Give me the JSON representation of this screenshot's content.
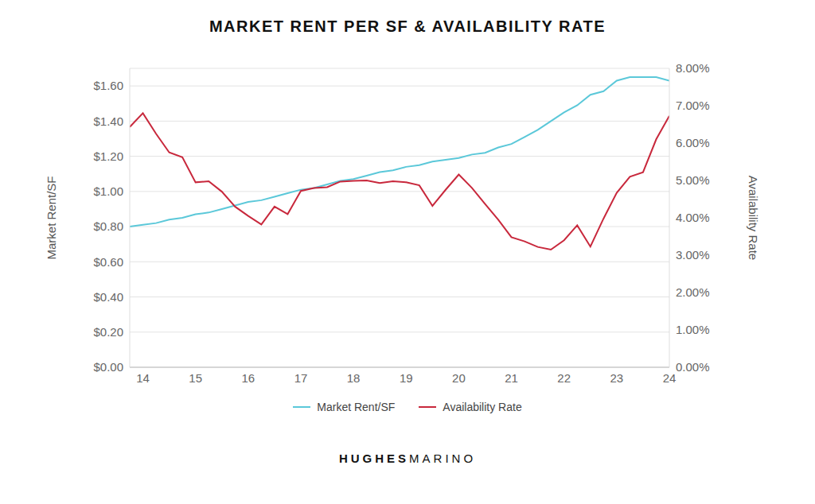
{
  "chart_data": {
    "type": "line",
    "title": "MARKET RENT PER SF & AVAILABILITY RATE",
    "y_label": "Market Rent/SF",
    "y2_label": "Availability Rate",
    "annotations": [
      "HUGHES",
      "MARINO"
    ],
    "x": [
      13.75,
      14,
      14.25,
      14.5,
      14.75,
      15,
      15.25,
      15.5,
      15.75,
      16,
      16.25,
      16.5,
      16.75,
      17,
      17.25,
      17.5,
      17.75,
      18,
      18.25,
      18.5,
      18.75,
      19,
      19.25,
      19.5,
      19.75,
      20,
      20.25,
      20.5,
      20.75,
      21,
      21.25,
      21.5,
      21.75,
      22,
      22.25,
      22.5,
      22.75,
      23,
      23.25,
      23.5,
      23.75,
      24
    ],
    "xlim": [
      13.75,
      24
    ],
    "xticks": [
      14,
      15,
      16,
      17,
      18,
      19,
      20,
      21,
      22,
      23,
      24
    ],
    "ylim": [
      0,
      1.7
    ],
    "yticks": [
      {
        "value": 0,
        "label": "$0.00"
      },
      {
        "value": 0.2,
        "label": "$0.20"
      },
      {
        "value": 0.4,
        "label": "$0.40"
      },
      {
        "value": 0.6,
        "label": "$0.60"
      },
      {
        "value": 0.8,
        "label": "$0.80"
      },
      {
        "value": 1.0,
        "label": "$1.00"
      },
      {
        "value": 1.2,
        "label": "$1.20"
      },
      {
        "value": 1.4,
        "label": "$1.40"
      },
      {
        "value": 1.6,
        "label": "$1.60"
      }
    ],
    "y2lim": [
      0,
      8
    ],
    "y2ticks": [
      {
        "value": 0,
        "label": "0.00%"
      },
      {
        "value": 1,
        "label": "1.00%"
      },
      {
        "value": 2,
        "label": "2.00%"
      },
      {
        "value": 3,
        "label": "3.00%"
      },
      {
        "value": 4,
        "label": "4.00%"
      },
      {
        "value": 5,
        "label": "5.00%"
      },
      {
        "value": 6,
        "label": "6.00%"
      },
      {
        "value": 7,
        "label": "7.00%"
      },
      {
        "value": 8,
        "label": "8.00%"
      }
    ],
    "grid": true,
    "legend": "bottom",
    "series": [
      {
        "name": "Market Rent/SF",
        "color": "#5bc8d9",
        "values": [
          0.8,
          0.81,
          0.82,
          0.84,
          0.85,
          0.87,
          0.88,
          0.9,
          0.92,
          0.94,
          0.95,
          0.97,
          0.99,
          1.01,
          1.02,
          1.04,
          1.06,
          1.07,
          1.09,
          1.11,
          1.12,
          1.14,
          1.15,
          1.17,
          1.18,
          1.19,
          1.21,
          1.22,
          1.25,
          1.27,
          1.31,
          1.35,
          1.4,
          1.45,
          1.49,
          1.55,
          1.57,
          1.63,
          1.65,
          1.65,
          1.65,
          1.63
        ]
      },
      {
        "name": "Availability Rate",
        "color": "#c8283c",
        "axis": "y2",
        "values": [
          6.43,
          6.8,
          6.25,
          5.75,
          5.62,
          4.95,
          4.98,
          4.7,
          4.3,
          4.05,
          3.82,
          4.3,
          4.1,
          4.72,
          4.8,
          4.82,
          4.97,
          4.99,
          5.0,
          4.93,
          4.98,
          4.95,
          4.87,
          4.32,
          4.75,
          5.16,
          4.8,
          4.37,
          3.95,
          3.48,
          3.37,
          3.22,
          3.15,
          3.4,
          3.8,
          3.23,
          3.98,
          4.67,
          5.1,
          5.22,
          6.1,
          6.73
        ]
      }
    ]
  }
}
